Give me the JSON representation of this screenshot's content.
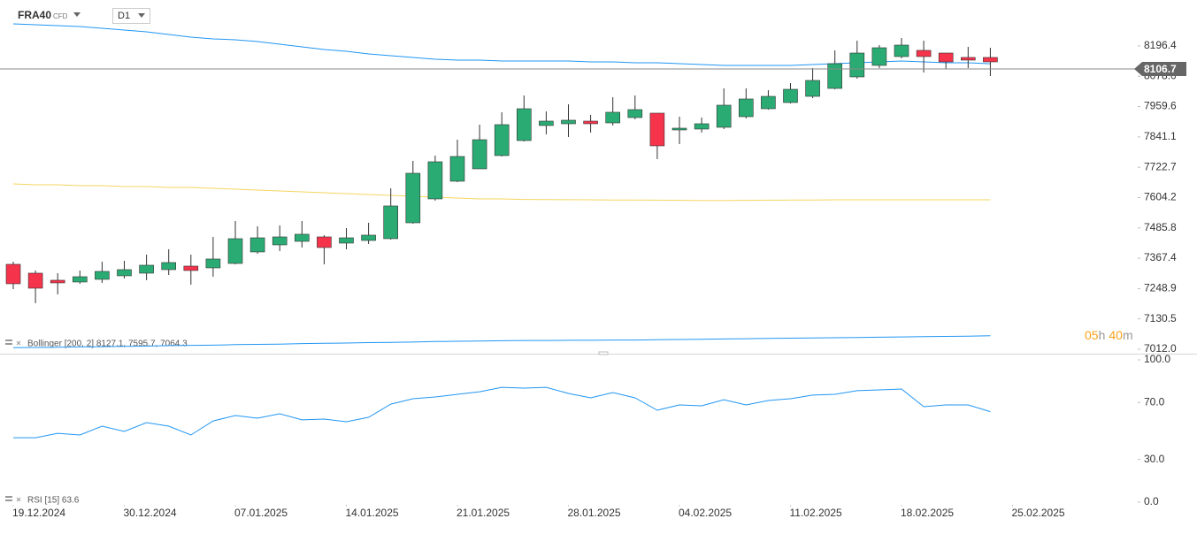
{
  "header": {
    "symbol": "FRA40",
    "instrument_type": "CFD",
    "timeframe": "D1"
  },
  "countdown": [
    "05",
    "h",
    "40",
    "m"
  ],
  "chart_data": [
    {
      "type": "candlestick",
      "indicator_label": "Bollinger  [200,  2]  8127.1,  7595.7,  7064.3",
      "up_color": "#2bab74",
      "down_color": "#f5334b",
      "open": [
        7343.6,
        7309.0,
        7281.4,
        7274.5,
        7284.9,
        7298.7,
        7309.0,
        7322.8,
        7336.6,
        7329.7,
        7347.0,
        7391.9,
        7419.5,
        7433.3,
        7450.6,
        7426.4,
        7436.8,
        7443.7,
        7505.8,
        7599.1,
        7668.1,
        7716.5,
        7768.3,
        7827.0,
        7885.7,
        7892.6,
        7902.9,
        7896.0,
        7916.8,
        7934.0,
        7868.4,
        7871.9,
        7878.8,
        7920.2,
        7951.3,
        7975.5,
        7999.6,
        8030.7,
        8075.6,
        8120.5,
        8155.0,
        8179.2,
        8168.8,
        8151.6,
        8151.6
      ],
      "high": [
        7353.9,
        7319.4,
        7309.0,
        7319.4,
        7353.9,
        7357.4,
        7381.5,
        7402.3,
        7381.5,
        7450.6,
        7512.7,
        7492.0,
        7495.5,
        7512.7,
        7457.5,
        7485.1,
        7505.8,
        7640.5,
        7747.6,
        7768.3,
        7830.4,
        7889.1,
        7937.5,
        8003.1,
        7940.9,
        7968.5,
        7927.1,
        7996.2,
        8003.1,
        7934.0,
        7920.2,
        7916.8,
        8030.7,
        8030.7,
        8023.8,
        8051.4,
        8110.1,
        8179.2,
        8217.2,
        8199.9,
        8227.5,
        8217.2,
        8168.8,
        8193.0,
        8189.5
      ],
      "low": [
        7246.9,
        7191.6,
        7226.2,
        7267.6,
        7271.1,
        7288.3,
        7281.4,
        7302.1,
        7264.1,
        7295.2,
        7343.6,
        7385.0,
        7395.3,
        7409.2,
        7343.6,
        7402.3,
        7423.0,
        7440.2,
        7502.4,
        7592.2,
        7664.7,
        7716.5,
        7764.8,
        7823.5,
        7851.1,
        7840.8,
        7858.1,
        7885.7,
        7909.8,
        7754.5,
        7813.2,
        7858.1,
        7871.9,
        7913.3,
        7947.8,
        7972.0,
        7992.7,
        8027.2,
        8068.7,
        8110.1,
        8148.1,
        8092.9,
        8106.7,
        8110.1,
        8079.0
      ],
      "close": [
        7267.6,
        7250.3,
        7271.1,
        7295.2,
        7315.9,
        7322.8,
        7340.1,
        7350.5,
        7319.4,
        7364.3,
        7443.7,
        7447.1,
        7450.6,
        7461.0,
        7409.2,
        7447.1,
        7457.5,
        7571.5,
        7699.2,
        7744.1,
        7764.8,
        7830.4,
        7889.1,
        7951.3,
        7902.9,
        7906.4,
        7892.6,
        7937.5,
        7947.8,
        7806.3,
        7875.3,
        7892.6,
        7965.1,
        7989.3,
        7999.6,
        8027.2,
        8061.8,
        8127.4,
        8168.8,
        8189.5,
        8199.9,
        8155.0,
        8134.3,
        8141.2,
        8134.3
      ],
      "overlays": [
        {
          "color": "#2196f3",
          "values": [
            8282.8,
            8279.3,
            8275.9,
            8272.4,
            8265.5,
            8258.6,
            8251.7,
            8241.3,
            8231.0,
            8224.1,
            8220.6,
            8213.7,
            8203.3,
            8193.0,
            8182.6,
            8175.7,
            8165.4,
            8158.5,
            8151.6,
            8144.6,
            8141.2,
            8141.2,
            8137.7,
            8137.7,
            8137.7,
            8137.7,
            8134.3,
            8134.3,
            8130.8,
            8130.8,
            8127.4,
            8123.9,
            8120.5,
            8120.5,
            8120.5,
            8120.5,
            8123.9,
            8127.4,
            8130.8,
            8134.3,
            8137.7,
            8134.3,
            8130.8,
            8130.8,
            8127.1
          ]
        },
        {
          "color": "#f7d560",
          "values": [
            7657.8,
            7654.3,
            7654.3,
            7650.9,
            7650.9,
            7647.4,
            7647.4,
            7644.0,
            7644.0,
            7640.5,
            7637.1,
            7633.6,
            7630.2,
            7626.7,
            7623.2,
            7619.8,
            7616.3,
            7612.9,
            7609.4,
            7606.0,
            7602.5,
            7599.1,
            7599.1,
            7597.0,
            7596.5,
            7596.0,
            7595.5,
            7595.0,
            7594.5,
            7594.0,
            7593.5,
            7593.0,
            7593.0,
            7593.5,
            7594.0,
            7594.5,
            7595.0,
            7595.5,
            7595.5,
            7595.5,
            7595.5,
            7595.5,
            7595.5,
            7595.7,
            7595.7
          ]
        },
        {
          "color": "#2196f3",
          "values": [
            7018,
            7019,
            7020,
            7021,
            7022,
            7023,
            7024,
            7026,
            7027,
            7028,
            7030,
            7031,
            7032,
            7034,
            7035,
            7036,
            7038,
            7039,
            7040,
            7042,
            7043,
            7044,
            7045,
            7046,
            7046,
            7047,
            7047,
            7048,
            7048,
            7049,
            7050,
            7051,
            7052,
            7053,
            7054,
            7055,
            7056,
            7057,
            7058,
            7059,
            7060,
            7061,
            7062,
            7063,
            7064.3
          ]
        }
      ],
      "last_price": 8106.7,
      "ylim": [
        6994.7,
        8358.7
      ],
      "yticks": [
        8196.4,
        {
          "value": 8078.0,
          "label": "8078.0"
        },
        7959.6,
        7841.1,
        7722.7,
        7604.2,
        7485.8,
        7367.4,
        7248.9,
        7130.5,
        {
          "value": 7012.0,
          "label": "7012.0"
        }
      ],
      "xticks": [
        {
          "value": 0,
          "label": "19.12.2024"
        },
        {
          "value": 5,
          "label": "30.12.2024"
        },
        {
          "value": 10,
          "label": "07.01.2025"
        },
        {
          "value": 15,
          "label": "14.01.2025"
        },
        {
          "value": 20,
          "label": "21.01.2025"
        },
        {
          "value": 25,
          "label": "28.01.2025"
        },
        {
          "value": 30,
          "label": "04.02.2025"
        },
        {
          "value": 35,
          "label": "11.02.2025"
        },
        {
          "value": 40,
          "label": "18.02.2025"
        },
        {
          "value": 45,
          "label": "25.02.2025"
        }
      ]
    },
    {
      "type": "line",
      "indicator_label": "RSI  [15]  63.6",
      "color": "#2196f3",
      "values": [
        45.3,
        45.3,
        48.4,
        47.2,
        53.4,
        49.7,
        55.9,
        53.4,
        47.2,
        57.1,
        60.9,
        59.0,
        62.1,
        57.8,
        58.4,
        56.5,
        59.6,
        68.9,
        72.7,
        73.9,
        75.8,
        77.6,
        80.7,
        80.1,
        80.7,
        76.4,
        73.3,
        77.0,
        73.3,
        64.6,
        68.3,
        67.7,
        72.0,
        68.3,
        71.4,
        72.7,
        75.2,
        75.8,
        78.3,
        78.9,
        79.5,
        67.1,
        68.3,
        68.3,
        63.6
      ],
      "ylim": [
        0,
        100
      ],
      "yticks": [
        {
          "value": 100,
          "label": "100.0"
        },
        {
          "value": 70,
          "label": "70.0"
        },
        {
          "value": 30,
          "label": "30.0"
        },
        {
          "value": 0,
          "label": "0.0"
        }
      ]
    }
  ]
}
